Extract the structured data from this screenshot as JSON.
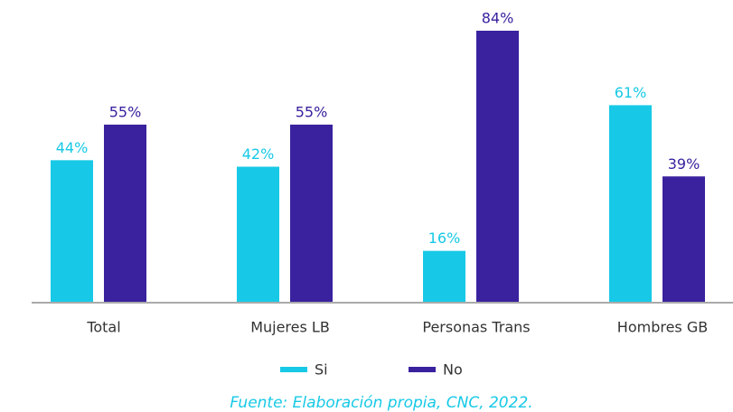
{
  "chart_data": {
    "type": "bar",
    "categories": [
      "Total",
      "Mujeres LB",
      "Personas Trans",
      "Hombres GB"
    ],
    "series": [
      {
        "name": "Si",
        "color": "#17c9e6",
        "values": [
          44,
          42,
          16,
          61
        ],
        "value_labels": [
          "44%",
          "42%",
          "16%",
          "61%"
        ]
      },
      {
        "name": "No",
        "color": "#3a229e",
        "values": [
          55,
          55,
          84,
          39
        ],
        "value_labels": [
          "55%",
          "55%",
          "84%",
          "39%"
        ]
      }
    ],
    "source": "Fuente: Elaboración propia, CNC, 2022."
  }
}
